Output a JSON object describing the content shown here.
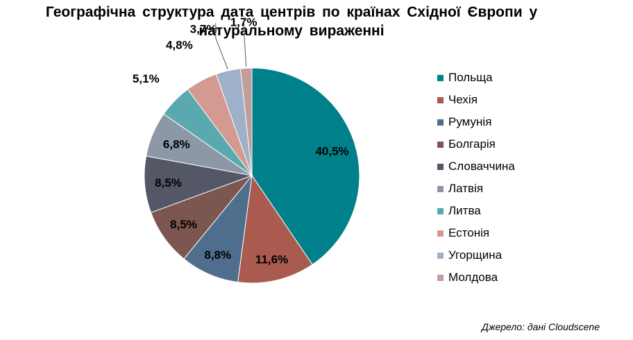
{
  "chart_data": {
    "type": "pie",
    "title": "Географічна структура дата центрів по країнах Східної Європи у натуральному вираженні",
    "title_lines": [
      "Географічна структура дата центрів по країнах Східної Європи у",
      "натуральному вираженні"
    ],
    "unit": "%",
    "legend_position": "right",
    "categories": [
      "Польща",
      "Чехія",
      "Румунія",
      "Болгарія",
      "Словаччина",
      "Латвія",
      "Литва",
      "Естонія",
      "Угорщина",
      "Молдова"
    ],
    "values": [
      40.5,
      11.6,
      8.8,
      8.5,
      8.5,
      6.8,
      5.1,
      4.8,
      3.7,
      1.7
    ],
    "labels": [
      "40,5%",
      "11,6%",
      "8,8%",
      "8,5%",
      "8,5%",
      "6,8%",
      "5,1%",
      "4,8%",
      "3,7%",
      "1,7%"
    ],
    "colors": [
      "#00808A",
      "#A95B4F",
      "#4F6E8E",
      "#7C5650",
      "#545866",
      "#8C98A6",
      "#5AA9B0",
      "#D49990",
      "#9DB1C8",
      "#C19E9B"
    ]
  },
  "source": "Джерело: дані Cloudscene"
}
